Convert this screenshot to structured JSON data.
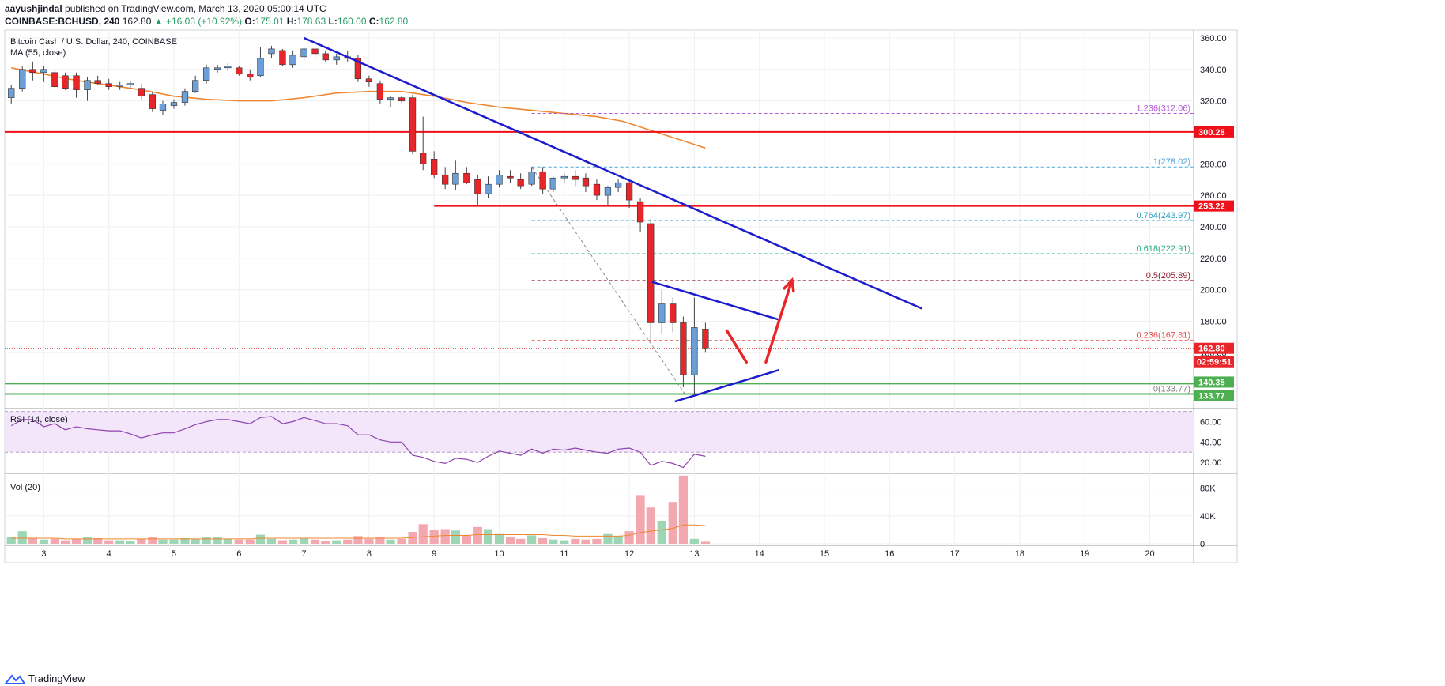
{
  "header": {
    "author": "aayushjindal",
    "published": "published on TradingView.com, March 13, 2020 05:00:14 UTC",
    "symbol": "COINBASE:BCHUSD, 240",
    "last": "162.80",
    "change": "▲ +16.03 (+10.92%)",
    "open": "175.01",
    "high": "178.63",
    "low": "160.00",
    "close": "162.80"
  },
  "footer": {
    "brand": "TradingView"
  },
  "colors": {
    "up": "#6a9fd8",
    "down": "#e8262a",
    "ma": "#f0862f",
    "trend": "#1c1ccf",
    "support": "#f0101a",
    "green": "#4caf50",
    "rsi": "#8e44ad",
    "vol_up": "#9dd5b5",
    "vol_down": "#f3a7ae"
  },
  "chart_data": [
    {
      "type": "candlestick",
      "title": "Bitcoin Cash / U.S. Dollar, 240, COINBASE",
      "indicator_label": "MA (55, close)",
      "ylim": [
        125,
        365
      ],
      "y_ticks": [
        360,
        340,
        320,
        300,
        280,
        260,
        240,
        220,
        200,
        180,
        160
      ],
      "x_ticks": [
        "3",
        "4",
        "5",
        "6",
        "7",
        "8",
        "9",
        "10",
        "11",
        "12",
        "13",
        "14",
        "15",
        "16",
        "17",
        "18",
        "19",
        "20"
      ],
      "x_tick_positions": [
        3,
        4,
        5,
        6,
        7,
        8,
        9,
        10,
        11,
        12,
        13,
        14,
        15,
        16,
        17,
        18,
        19,
        20
      ],
      "xlim": [
        2.4,
        20.65
      ],
      "candles": [
        {
          "t": 2.5,
          "o": 322,
          "h": 330,
          "l": 318,
          "c": 328
        },
        {
          "t": 2.67,
          "o": 328,
          "h": 342,
          "l": 326,
          "c": 340
        },
        {
          "t": 2.83,
          "o": 340,
          "h": 345,
          "l": 333,
          "c": 338
        },
        {
          "t": 3.0,
          "o": 338,
          "h": 342,
          "l": 332,
          "c": 340
        },
        {
          "t": 3.17,
          "o": 338,
          "h": 340,
          "l": 328,
          "c": 329
        },
        {
          "t": 3.33,
          "o": 336,
          "h": 338,
          "l": 327,
          "c": 328
        },
        {
          "t": 3.5,
          "o": 336,
          "h": 338,
          "l": 322,
          "c": 327
        },
        {
          "t": 3.67,
          "o": 327,
          "h": 335,
          "l": 320,
          "c": 333
        },
        {
          "t": 3.83,
          "o": 333,
          "h": 336,
          "l": 330,
          "c": 331
        },
        {
          "t": 4.0,
          "o": 331,
          "h": 334,
          "l": 327,
          "c": 329
        },
        {
          "t": 4.17,
          "o": 330,
          "h": 332,
          "l": 327,
          "c": 330
        },
        {
          "t": 4.33,
          "o": 330,
          "h": 333,
          "l": 328,
          "c": 331
        },
        {
          "t": 4.5,
          "o": 328,
          "h": 331,
          "l": 321,
          "c": 323
        },
        {
          "t": 4.67,
          "o": 324,
          "h": 326,
          "l": 313,
          "c": 315
        },
        {
          "t": 4.83,
          "o": 314,
          "h": 320,
          "l": 311,
          "c": 318
        },
        {
          "t": 5.0,
          "o": 317,
          "h": 321,
          "l": 315,
          "c": 319
        },
        {
          "t": 5.17,
          "o": 319,
          "h": 328,
          "l": 317,
          "c": 326
        },
        {
          "t": 5.33,
          "o": 326,
          "h": 336,
          "l": 325,
          "c": 333
        },
        {
          "t": 5.5,
          "o": 333,
          "h": 343,
          "l": 331,
          "c": 341
        },
        {
          "t": 5.67,
          "o": 340,
          "h": 343,
          "l": 338,
          "c": 341
        },
        {
          "t": 5.83,
          "o": 341,
          "h": 344,
          "l": 339,
          "c": 342
        },
        {
          "t": 6.0,
          "o": 341,
          "h": 342,
          "l": 336,
          "c": 337
        },
        {
          "t": 6.17,
          "o": 337,
          "h": 340,
          "l": 333,
          "c": 335
        },
        {
          "t": 6.33,
          "o": 336,
          "h": 354,
          "l": 335,
          "c": 347
        },
        {
          "t": 6.5,
          "o": 350,
          "h": 355,
          "l": 347,
          "c": 353
        },
        {
          "t": 6.67,
          "o": 352,
          "h": 353,
          "l": 342,
          "c": 343
        },
        {
          "t": 6.83,
          "o": 343,
          "h": 352,
          "l": 341,
          "c": 349
        },
        {
          "t": 7.0,
          "o": 348,
          "h": 354,
          "l": 346,
          "c": 353
        },
        {
          "t": 7.17,
          "o": 353,
          "h": 355,
          "l": 347,
          "c": 350
        },
        {
          "t": 7.33,
          "o": 350,
          "h": 352,
          "l": 345,
          "c": 346
        },
        {
          "t": 7.5,
          "o": 346,
          "h": 350,
          "l": 343,
          "c": 348
        },
        {
          "t": 7.67,
          "o": 348,
          "h": 352,
          "l": 345,
          "c": 347
        },
        {
          "t": 7.83,
          "o": 347,
          "h": 349,
          "l": 332,
          "c": 334
        },
        {
          "t": 8.0,
          "o": 334,
          "h": 336,
          "l": 329,
          "c": 332
        },
        {
          "t": 8.17,
          "o": 331,
          "h": 333,
          "l": 318,
          "c": 321
        },
        {
          "t": 8.33,
          "o": 321,
          "h": 323,
          "l": 316,
          "c": 322
        },
        {
          "t": 8.5,
          "o": 322,
          "h": 323,
          "l": 319,
          "c": 320
        },
        {
          "t": 8.67,
          "o": 322,
          "h": 324,
          "l": 286,
          "c": 288
        },
        {
          "t": 8.83,
          "o": 287,
          "h": 310,
          "l": 276,
          "c": 280
        },
        {
          "t": 9.0,
          "o": 283,
          "h": 288,
          "l": 271,
          "c": 273
        },
        {
          "t": 9.17,
          "o": 273,
          "h": 278,
          "l": 264,
          "c": 267
        },
        {
          "t": 9.33,
          "o": 267,
          "h": 282,
          "l": 263,
          "c": 274
        },
        {
          "t": 9.5,
          "o": 274,
          "h": 278,
          "l": 267,
          "c": 268
        },
        {
          "t": 9.67,
          "o": 270,
          "h": 273,
          "l": 254,
          "c": 261
        },
        {
          "t": 9.83,
          "o": 261,
          "h": 272,
          "l": 258,
          "c": 267
        },
        {
          "t": 10.0,
          "o": 267,
          "h": 276,
          "l": 265,
          "c": 273
        },
        {
          "t": 10.17,
          "o": 272,
          "h": 276,
          "l": 268,
          "c": 271
        },
        {
          "t": 10.33,
          "o": 270,
          "h": 274,
          "l": 264,
          "c": 266
        },
        {
          "t": 10.5,
          "o": 267,
          "h": 278,
          "l": 266,
          "c": 275
        },
        {
          "t": 10.67,
          "o": 275,
          "h": 278,
          "l": 261,
          "c": 264
        },
        {
          "t": 10.83,
          "o": 264,
          "h": 272,
          "l": 262,
          "c": 271
        },
        {
          "t": 11.0,
          "o": 271,
          "h": 274,
          "l": 268,
          "c": 272
        },
        {
          "t": 11.17,
          "o": 272,
          "h": 276,
          "l": 266,
          "c": 270
        },
        {
          "t": 11.33,
          "o": 271,
          "h": 274,
          "l": 262,
          "c": 266
        },
        {
          "t": 11.5,
          "o": 267,
          "h": 270,
          "l": 257,
          "c": 260
        },
        {
          "t": 11.67,
          "o": 260,
          "h": 266,
          "l": 254,
          "c": 265
        },
        {
          "t": 11.83,
          "o": 265,
          "h": 270,
          "l": 262,
          "c": 268
        },
        {
          "t": 12.0,
          "o": 268,
          "h": 270,
          "l": 252,
          "c": 257
        },
        {
          "t": 12.17,
          "o": 256,
          "h": 258,
          "l": 237,
          "c": 243
        },
        {
          "t": 12.33,
          "o": 242,
          "h": 245,
          "l": 168,
          "c": 179
        },
        {
          "t": 12.5,
          "o": 179,
          "h": 200,
          "l": 172,
          "c": 191
        },
        {
          "t": 12.67,
          "o": 191,
          "h": 195,
          "l": 173,
          "c": 179
        },
        {
          "t": 12.83,
          "o": 179,
          "h": 183,
          "l": 138,
          "c": 146
        },
        {
          "t": 13.0,
          "o": 146,
          "h": 195,
          "l": 134,
          "c": 176
        },
        {
          "t": 13.17,
          "o": 175,
          "h": 179,
          "l": 160,
          "c": 163
        }
      ],
      "ma": [
        {
          "t": 2.5,
          "v": 341
        },
        {
          "t": 3.0,
          "v": 337
        },
        {
          "t": 3.5,
          "v": 333
        },
        {
          "t": 4.0,
          "v": 330
        },
        {
          "t": 4.5,
          "v": 327
        },
        {
          "t": 5.0,
          "v": 323
        },
        {
          "t": 5.5,
          "v": 321
        },
        {
          "t": 6.0,
          "v": 320
        },
        {
          "t": 6.5,
          "v": 320
        },
        {
          "t": 7.0,
          "v": 322
        },
        {
          "t": 7.5,
          "v": 325
        },
        {
          "t": 8.0,
          "v": 326
        },
        {
          "t": 8.5,
          "v": 326
        },
        {
          "t": 9.0,
          "v": 323
        },
        {
          "t": 9.5,
          "v": 319
        },
        {
          "t": 10.0,
          "v": 316
        },
        {
          "t": 10.5,
          "v": 314
        },
        {
          "t": 11.0,
          "v": 312
        },
        {
          "t": 11.5,
          "v": 310
        },
        {
          "t": 11.9,
          "v": 307
        },
        {
          "t": 12.2,
          "v": 303
        },
        {
          "t": 12.5,
          "v": 299
        },
        {
          "t": 12.8,
          "v": 295
        },
        {
          "t": 13.17,
          "v": 290
        }
      ],
      "fib_levels": [
        {
          "label": "1.236(312.06)",
          "value": 312.06,
          "color": "#b15ad4"
        },
        {
          "label": "1(278.02)",
          "value": 278.02,
          "color": "#4aa3d8"
        },
        {
          "label": "0.764(243.97)",
          "value": 243.97,
          "color": "#2aa0c9"
        },
        {
          "label": "0.618(222.91)",
          "value": 222.91,
          "color": "#26b07d"
        },
        {
          "label": "0.5(205.89)",
          "value": 205.89,
          "color": "#8b1a2b"
        },
        {
          "label": "0.236(167.81)",
          "value": 167.81,
          "color": "#e05050"
        },
        {
          "label": "0(133.77)",
          "value": 133.77,
          "color": "#808080"
        }
      ],
      "fib_x_start": 10.5,
      "horizontal_lines": [
        {
          "value": 300.28,
          "label": "300.28",
          "color": "#f0101a",
          "x_start": 2.4
        },
        {
          "value": 253.22,
          "label": "253.22",
          "color": "#f0101a",
          "x_start": 9.0
        },
        {
          "value": 140.35,
          "label": "140.35",
          "color": "#4caf50",
          "x_start": 2.4
        },
        {
          "value": 133.77,
          "label": "133.77",
          "color": "#4caf50",
          "x_start": 2.4
        }
      ],
      "price_line": {
        "value": 162.8,
        "label": "162.80",
        "countdown": "02:59:51"
      },
      "trendlines": [
        {
          "x1": 7.0,
          "y1": 360,
          "x2": 16.5,
          "y2": 188
        },
        {
          "x1": 12.35,
          "y1": 205,
          "x2": 14.3,
          "y2": 181
        },
        {
          "x1": 12.7,
          "y1": 129,
          "x2": 14.3,
          "y2": 149
        }
      ],
      "fib_dashed_diag": {
        "x1": 10.5,
        "y1": 278,
        "x2": 12.85,
        "y2": 134
      },
      "arrows": [
        {
          "x1": 13.5,
          "y1": 174,
          "x2": 13.8,
          "y2": 154
        },
        {
          "x1": 14.1,
          "y1": 154,
          "x2": 14.5,
          "y2": 206
        }
      ]
    },
    {
      "type": "line",
      "title": "RSI (14, close)",
      "ylim": [
        10,
        72
      ],
      "y_ticks": [
        60,
        40,
        20
      ],
      "band": [
        30,
        70
      ],
      "x": [
        2.5,
        2.67,
        2.83,
        3.0,
        3.17,
        3.33,
        3.5,
        3.67,
        3.83,
        4.0,
        4.17,
        4.33,
        4.5,
        4.67,
        4.83,
        5.0,
        5.17,
        5.33,
        5.5,
        5.67,
        5.83,
        6.0,
        6.17,
        6.33,
        6.5,
        6.67,
        6.83,
        7.0,
        7.17,
        7.33,
        7.5,
        7.67,
        7.83,
        8.0,
        8.17,
        8.33,
        8.5,
        8.67,
        8.83,
        9.0,
        9.17,
        9.33,
        9.5,
        9.67,
        9.83,
        10.0,
        10.17,
        10.33,
        10.5,
        10.67,
        10.83,
        11.0,
        11.17,
        11.33,
        11.5,
        11.67,
        11.83,
        12.0,
        12.17,
        12.33,
        12.5,
        12.67,
        12.83,
        13.0,
        13.17
      ],
      "y": [
        56,
        62,
        62,
        55,
        58,
        52,
        55,
        53,
        52,
        51,
        51,
        48,
        44,
        47,
        49,
        49,
        53,
        57,
        60,
        62,
        62,
        60,
        58,
        64,
        65,
        58,
        60,
        64,
        61,
        58,
        58,
        56,
        47,
        47,
        42,
        40,
        40,
        27,
        25,
        21,
        19,
        24,
        23,
        20,
        26,
        31,
        29,
        27,
        33,
        29,
        33,
        32,
        34,
        32,
        30,
        29,
        33,
        34,
        30,
        17,
        21,
        19,
        15,
        28,
        26
      ]
    },
    {
      "type": "bar",
      "title": "Vol (20)",
      "ylim": [
        0,
        100000
      ],
      "y_ticks": [
        "80K",
        "40K",
        "0"
      ],
      "y_tick_values": [
        80000,
        40000,
        0
      ],
      "x": [
        2.5,
        2.67,
        2.83,
        3.0,
        3.17,
        3.33,
        3.5,
        3.67,
        3.83,
        4.0,
        4.17,
        4.33,
        4.5,
        4.67,
        4.83,
        5.0,
        5.17,
        5.33,
        5.5,
        5.67,
        5.83,
        6.0,
        6.17,
        6.33,
        6.5,
        6.67,
        6.83,
        7.0,
        7.17,
        7.33,
        7.5,
        7.67,
        7.83,
        8.0,
        8.17,
        8.33,
        8.5,
        8.67,
        8.83,
        9.0,
        9.17,
        9.33,
        9.5,
        9.67,
        9.83,
        10.0,
        10.17,
        10.33,
        10.5,
        10.67,
        10.83,
        11.0,
        11.17,
        11.33,
        11.5,
        11.67,
        11.83,
        12.0,
        12.17,
        12.33,
        12.5,
        12.67,
        12.83,
        13.0,
        13.17
      ],
      "values": [
        10000,
        18000,
        8000,
        6000,
        7000,
        5000,
        7000,
        9000,
        8000,
        5000,
        5000,
        4000,
        7000,
        9000,
        6000,
        6000,
        8000,
        7000,
        9000,
        9000,
        7000,
        6000,
        6000,
        13000,
        7000,
        5000,
        6000,
        8000,
        6000,
        4000,
        5000,
        6000,
        11000,
        7000,
        9000,
        6000,
        7000,
        17000,
        28000,
        20000,
        21000,
        19000,
        12000,
        24000,
        21000,
        14000,
        9000,
        7000,
        12000,
        8000,
        6000,
        5000,
        7000,
        6000,
        7000,
        14000,
        11000,
        18000,
        70000,
        52000,
        33000,
        60000,
        98000,
        7000,
        3000
      ],
      "up": [
        true,
        true,
        false,
        true,
        false,
        false,
        false,
        true,
        false,
        false,
        true,
        true,
        false,
        false,
        true,
        true,
        true,
        true,
        true,
        true,
        true,
        false,
        false,
        true,
        true,
        false,
        true,
        true,
        false,
        false,
        true,
        false,
        false,
        false,
        false,
        true,
        false,
        false,
        false,
        false,
        false,
        true,
        false,
        false,
        true,
        true,
        false,
        false,
        true,
        false,
        true,
        true,
        false,
        false,
        false,
        true,
        true,
        false,
        false,
        false,
        true,
        false,
        false,
        true,
        false
      ],
      "ma": [
        8000,
        8000,
        8000,
        8000,
        8000,
        7000,
        7000,
        7000,
        7000,
        7000,
        7000,
        7000,
        7000,
        7000,
        7000,
        7000,
        7000,
        7000,
        7000,
        7000,
        7000,
        7000,
        7000,
        8000,
        8000,
        8000,
        8000,
        8000,
        8000,
        8000,
        8000,
        8000,
        8000,
        8000,
        8000,
        8000,
        8000,
        9000,
        10000,
        11000,
        12000,
        12000,
        12000,
        13000,
        13000,
        13000,
        13000,
        13000,
        13000,
        13000,
        12000,
        12000,
        11000,
        11000,
        11000,
        11000,
        11000,
        12000,
        16000,
        18000,
        20000,
        22000,
        27000,
        27000,
        26000
      ]
    }
  ]
}
